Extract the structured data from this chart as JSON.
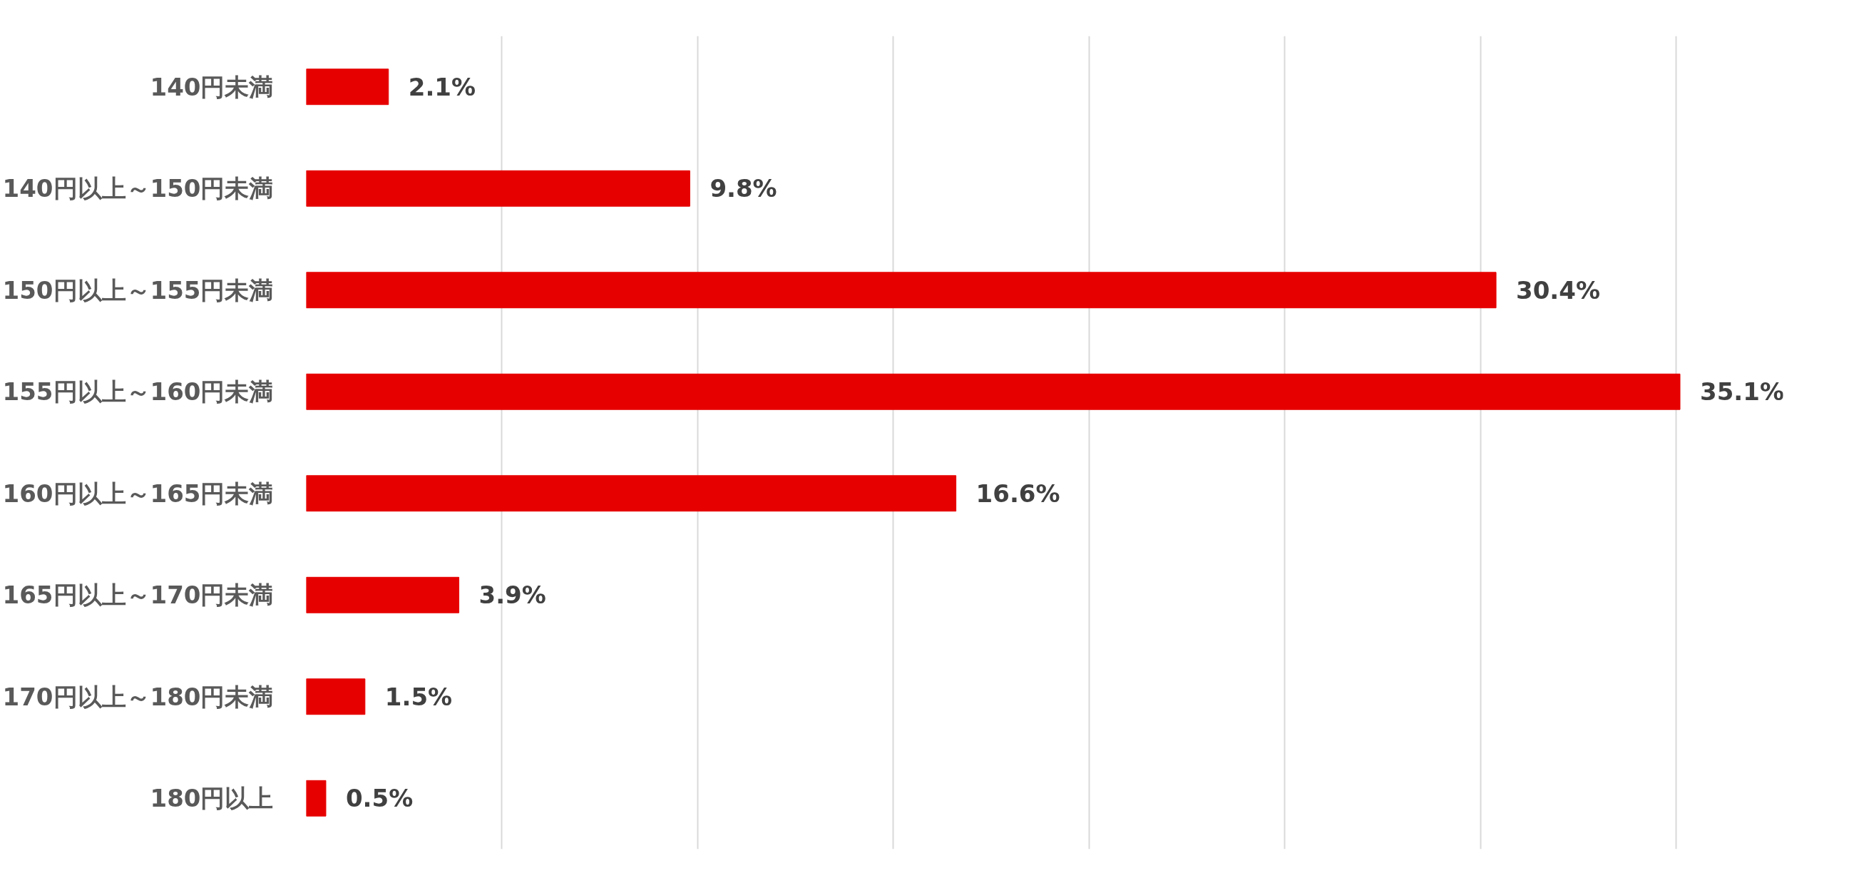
{
  "chart_data": {
    "type": "bar",
    "orientation": "horizontal",
    "categories": [
      "140円未満",
      "140円以上～150円未満",
      "150円以上～155円未満",
      "155円以上～160円未満",
      "160円以上～165円未満",
      "165円以上～170円未満",
      "170円以上～180円未満",
      "180円以上"
    ],
    "values": [
      2.1,
      9.8,
      30.4,
      35.1,
      16.6,
      3.9,
      1.5,
      0.5
    ],
    "value_labels": [
      "2.1%",
      "9.8%",
      "30.4%",
      "35.1%",
      "16.6%",
      "3.9%",
      "1.5%",
      "0.5%"
    ],
    "color": "#e60000",
    "grid": "x",
    "tick_labels": "y"
  }
}
